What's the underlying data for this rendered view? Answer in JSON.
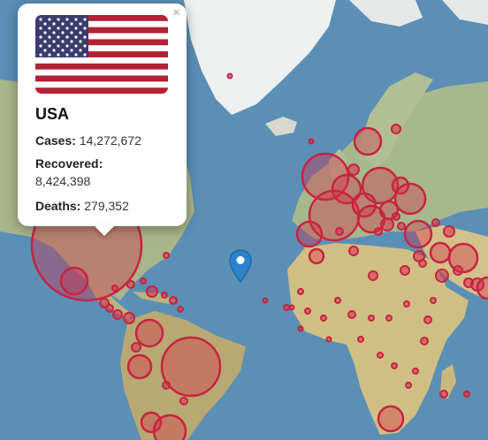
{
  "popup": {
    "close_symbol": "×",
    "flag_icon": "usa-flag-icon",
    "country": "USA",
    "cases_label": "Cases:",
    "cases_value": "14,272,672",
    "recovered_label": "Recovered:",
    "recovered_value": "8,424,398",
    "deaths_label": "Deaths:",
    "deaths_value": "279,352"
  },
  "map": {
    "marker_icon": "map-pin-icon",
    "circle_color": "#c8233f",
    "ocean_color": "#5b8fb6",
    "land_color": "#c9c28f"
  }
}
